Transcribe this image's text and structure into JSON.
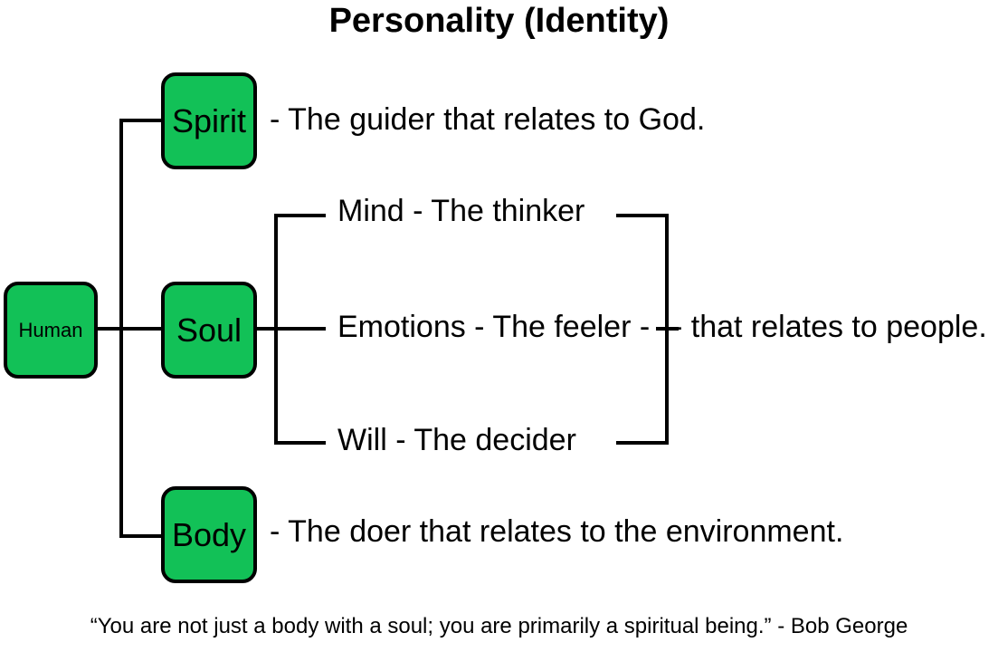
{
  "title": "Personality (Identity)",
  "nodes": {
    "human": "Human",
    "spirit": "Spirit",
    "soul": "Soul",
    "body": "Body"
  },
  "descriptions": {
    "spirit": "- The guider that relates to God.",
    "body": "- The doer that relates to the environment.",
    "mind": "Mind - The thinker",
    "emotions": "Emotions - The feeler -",
    "will": "Will - The decider",
    "people": "- that relates to people."
  },
  "quote": "“You are not just a body with a soul; you are primarily a spiritual being.” - Bob George",
  "colors": {
    "box_fill": "#12c157",
    "stroke": "#000000"
  }
}
